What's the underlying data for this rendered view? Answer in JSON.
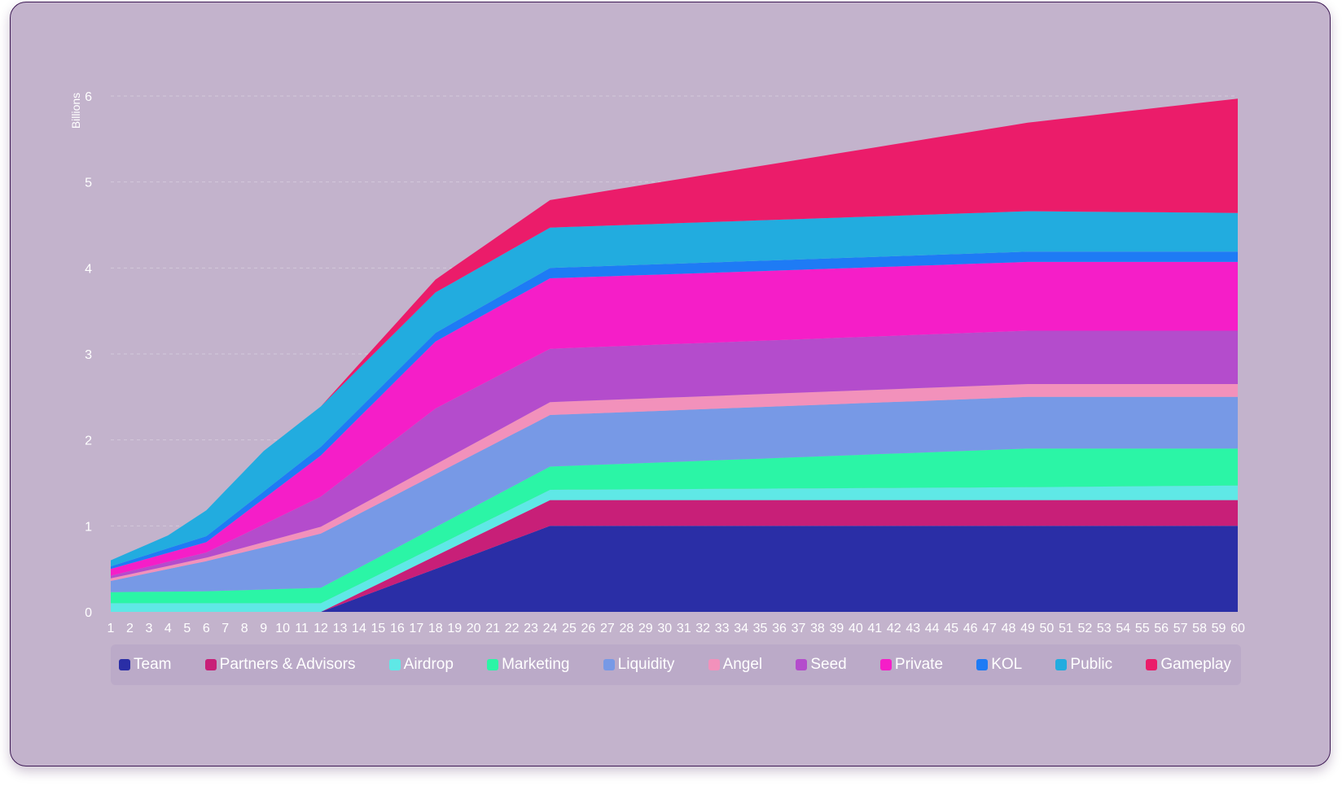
{
  "chart_data": {
    "type": "area",
    "stacked": true,
    "ylabel": "Billions",
    "ylim": [
      0,
      6
    ],
    "yticks": [
      "0",
      "1",
      "2",
      "3",
      "4",
      "5",
      "6"
    ],
    "x": [
      1,
      2,
      3,
      4,
      5,
      6,
      7,
      8,
      9,
      10,
      11,
      12,
      13,
      14,
      15,
      16,
      17,
      18,
      19,
      20,
      21,
      22,
      23,
      24,
      25,
      26,
      27,
      28,
      29,
      30,
      31,
      32,
      33,
      34,
      35,
      36,
      37,
      38,
      39,
      40,
      41,
      42,
      43,
      44,
      45,
      46,
      47,
      48,
      49,
      50,
      51,
      52,
      53,
      54,
      55,
      56,
      57,
      58,
      59,
      60
    ],
    "grid": true,
    "legend_position": "bottom",
    "series": [
      {
        "name": "Team",
        "color": "#2a2ea6",
        "points": [
          [
            1,
            0
          ],
          [
            12,
            0
          ],
          [
            24,
            1.0
          ],
          [
            60,
            1.0
          ]
        ]
      },
      {
        "name": "Partners & Advisors",
        "color": "#c81f78",
        "points": [
          [
            1,
            0
          ],
          [
            12,
            0
          ],
          [
            24,
            0.3
          ],
          [
            60,
            0.3
          ]
        ]
      },
      {
        "name": "Airdrop",
        "color": "#5fe8e6",
        "points": [
          [
            1,
            0.1
          ],
          [
            12,
            0.1
          ],
          [
            24,
            0.12
          ],
          [
            49,
            0.15
          ],
          [
            60,
            0.17
          ]
        ]
      },
      {
        "name": "Marketing",
        "color": "#2bf5a6",
        "points": [
          [
            1,
            0.13
          ],
          [
            6,
            0.14
          ],
          [
            12,
            0.18
          ],
          [
            24,
            0.27
          ],
          [
            49,
            0.45
          ],
          [
            60,
            0.43
          ]
        ]
      },
      {
        "name": "Liquidity",
        "color": "#7799e6",
        "points": [
          [
            1,
            0.13
          ],
          [
            6,
            0.35
          ],
          [
            12,
            0.63
          ],
          [
            24,
            0.6
          ],
          [
            49,
            0.6
          ],
          [
            60,
            0.6
          ]
        ]
      },
      {
        "name": "Angel",
        "color": "#f291bb",
        "points": [
          [
            1,
            0.03
          ],
          [
            6,
            0.04
          ],
          [
            12,
            0.08
          ],
          [
            24,
            0.15
          ],
          [
            49,
            0.15
          ],
          [
            60,
            0.15
          ]
        ]
      },
      {
        "name": "Seed",
        "color": "#b44ccc",
        "points": [
          [
            1,
            0.03
          ],
          [
            6,
            0.06
          ],
          [
            12,
            0.35
          ],
          [
            18,
            0.65
          ],
          [
            24,
            0.62
          ],
          [
            49,
            0.62
          ],
          [
            60,
            0.62
          ]
        ]
      },
      {
        "name": "Private",
        "color": "#f51ec8",
        "points": [
          [
            1,
            0.08
          ],
          [
            6,
            0.12
          ],
          [
            12,
            0.48
          ],
          [
            18,
            0.78
          ],
          [
            24,
            0.82
          ],
          [
            49,
            0.8
          ],
          [
            60,
            0.8
          ]
        ]
      },
      {
        "name": "KOL",
        "color": "#1e7bf5",
        "points": [
          [
            1,
            0.03
          ],
          [
            6,
            0.07
          ],
          [
            12,
            0.1
          ],
          [
            18,
            0.1
          ],
          [
            24,
            0.12
          ],
          [
            49,
            0.12
          ],
          [
            60,
            0.12
          ]
        ]
      },
      {
        "name": "Public",
        "color": "#22acdf",
        "points": [
          [
            1,
            0.07
          ],
          [
            4,
            0.15
          ],
          [
            6,
            0.3
          ],
          [
            9,
            0.47
          ],
          [
            12,
            0.47
          ],
          [
            18,
            0.47
          ],
          [
            24,
            0.47
          ],
          [
            49,
            0.47
          ],
          [
            60,
            0.45
          ]
        ]
      },
      {
        "name": "Gameplay",
        "color": "#eb1c6a",
        "points": [
          [
            1,
            0
          ],
          [
            12,
            0
          ],
          [
            18,
            0.15
          ],
          [
            24,
            0.32
          ],
          [
            49,
            1.03
          ],
          [
            60,
            1.33
          ]
        ]
      }
    ]
  }
}
